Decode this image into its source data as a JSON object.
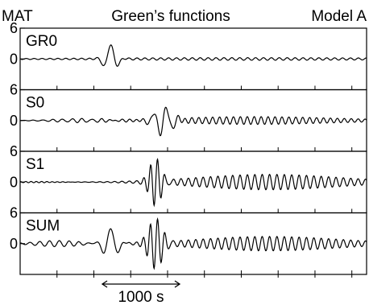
{
  "header": {
    "left": "MAT",
    "center": "Green’s functions",
    "right": "Model A"
  },
  "scale_bar_label": "1000 s",
  "chart_data": {
    "type": "line",
    "ylim": [
      -6,
      6
    ],
    "yticks_printed": [
      "6",
      "0"
    ],
    "grid": false,
    "panels": [
      {
        "label": "GR0",
        "envelopes": [
          {
            "center": 1200,
            "amp": 2.8,
            "width": 110,
            "period": 210,
            "phase": 1.5
          },
          {
            "center": 3000,
            "amp": 0.25,
            "width": 3000,
            "period": 105,
            "phase": 0.3
          }
        ]
      },
      {
        "label": "S0",
        "envelopes": [
          {
            "center": 1900,
            "amp": 2.8,
            "width": 160,
            "period": 170,
            "phase": 0.0
          },
          {
            "center": 3100,
            "amp": 0.75,
            "width": 1500,
            "period": 92,
            "phase": 1.0
          },
          {
            "center": 800,
            "amp": 0.35,
            "width": 500,
            "period": 130,
            "phase": 0.5
          }
        ]
      },
      {
        "label": "S1",
        "envelopes": [
          {
            "center": 1800,
            "amp": 4.5,
            "width": 110,
            "period": 92,
            "phase": 0.0
          },
          {
            "center": 3300,
            "amp": 1.5,
            "width": 1300,
            "period": 98,
            "phase": 0.8
          },
          {
            "center": 200,
            "amp": 0.12,
            "width": 400,
            "period": 70,
            "phase": 0.2
          }
        ]
      },
      {
        "label": "SUM",
        "envelopes": [
          {
            "center": 1200,
            "amp": 3.0,
            "width": 130,
            "period": 210,
            "phase": 1.5
          },
          {
            "center": 1800,
            "amp": 4.8,
            "width": 130,
            "period": 95,
            "phase": 0.0
          },
          {
            "center": 3300,
            "amp": 1.4,
            "width": 1300,
            "period": 98,
            "phase": 0.8
          },
          {
            "center": 500,
            "amp": 0.6,
            "width": 400,
            "period": 130,
            "phase": 0.6
          }
        ]
      }
    ],
    "x_range_s": [
      0,
      4600
    ],
    "samples": 900
  }
}
